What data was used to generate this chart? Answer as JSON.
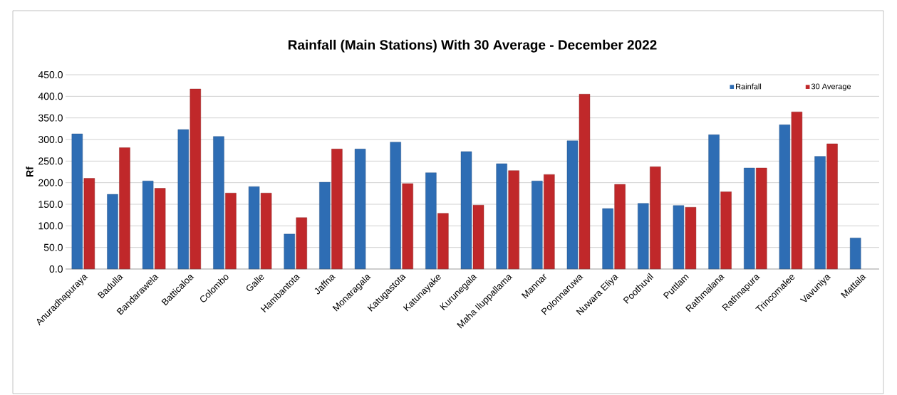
{
  "chart_data": {
    "type": "bar",
    "title": "Rainfall (Main Stations) With 30 Average - December 2022",
    "ylabel": "Rf",
    "categories": [
      "Anuradhapuraya",
      "Badulla",
      "Bandarawela",
      "Batticaloa",
      "Colombo",
      "Galle",
      "Hambantota",
      "Jaffna",
      "Monaragala",
      "Katugastota",
      "Katunayake",
      "Kurunegala",
      "Maha Iluppallama",
      "Mannar",
      "Polonnaruwa",
      "Nuwara Eliya",
      "Poothuvil",
      "Puttlam",
      "Rathmalana",
      "Rathnapura",
      "Trincomalee",
      "Vavuniya",
      "Mattala"
    ],
    "series": [
      {
        "name": "Rainfall",
        "color": "#2e6db4",
        "values": [
          313,
          173,
          204,
          323,
          307,
          191,
          81,
          201,
          278,
          294,
          223,
          272,
          244,
          204,
          297,
          140,
          152,
          147,
          311,
          234,
          334,
          261,
          72
        ]
      },
      {
        "name": "30 Average",
        "color": "#c0282a",
        "values": [
          210,
          281,
          187,
          417,
          176,
          176,
          119,
          278,
          null,
          198,
          129,
          148,
          228,
          219,
          405,
          196,
          237,
          143,
          179,
          234,
          364,
          290,
          null
        ]
      }
    ],
    "ylim": [
      0,
      450
    ],
    "yticks": [
      {
        "value": 0,
        "label": "0.0"
      },
      {
        "value": 50,
        "label": "50.0"
      },
      {
        "value": 100,
        "label": "100.0"
      },
      {
        "value": 150,
        "label": "150.0"
      },
      {
        "value": 200,
        "label": "200.0"
      },
      {
        "value": 250,
        "label": "250.0"
      },
      {
        "value": 300,
        "label": "300.0"
      },
      {
        "value": 350,
        "label": "350.0"
      },
      {
        "value": 400,
        "label": "400.0"
      },
      {
        "value": 450,
        "label": "450.0"
      }
    ],
    "grid": "y",
    "legend": "top right"
  }
}
